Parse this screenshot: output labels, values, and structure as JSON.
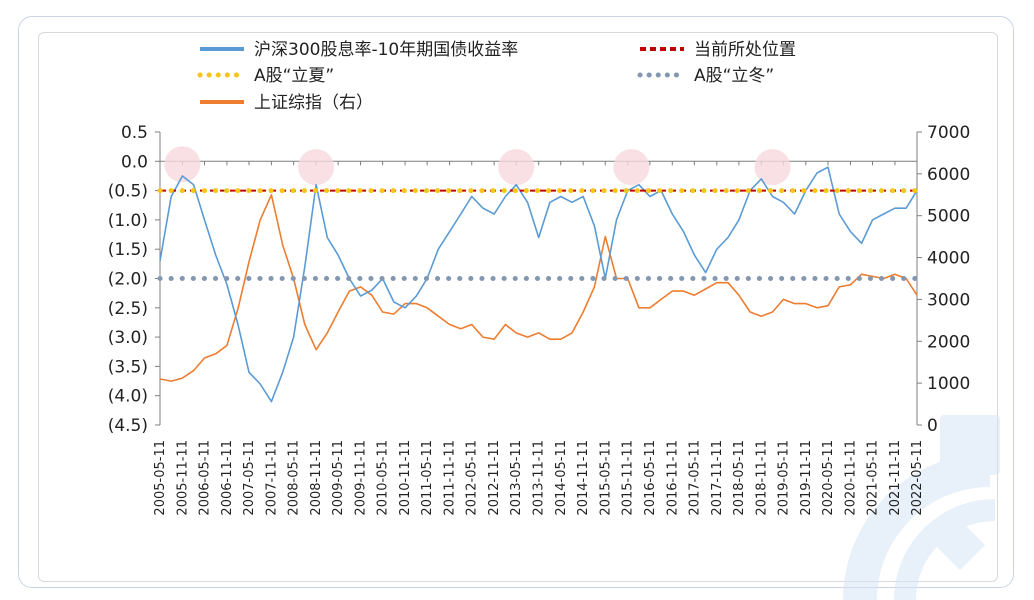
{
  "colors": {
    "blue": "#5b9bd5",
    "orange": "#ed7d31",
    "red_dashed": "#c00000",
    "yellow_dotted": "#f5c518",
    "gray_dotted": "#8497b0",
    "circle_fill": "#f6d8de",
    "watermark": "#d6e4f5"
  },
  "legend": {
    "blue_line": "沪深300股息率-10年期国债收益率",
    "red_dashed": "当前所处位置",
    "yellow_dotted": "A股“立夏”",
    "gray_dotted": "A股“立冬”",
    "orange_line": "上证综指（右）"
  },
  "chart_data": {
    "type": "line",
    "left_axis": {
      "ylim": [
        -4.5,
        0.5
      ],
      "ticks": [
        0.5,
        0.0,
        -0.5,
        -1.0,
        -1.5,
        -2.0,
        -2.5,
        -3.0,
        -3.5,
        -4.0,
        -4.5
      ],
      "tick_labels": [
        "0.5",
        "0.0",
        "(0.5)",
        "(1.0)",
        "(1.5)",
        "(2.0)",
        "(2.5)",
        "(3.0)",
        "(3.5)",
        "(4.0)",
        "(4.5)"
      ]
    },
    "right_axis": {
      "ylim": [
        0,
        7000
      ],
      "ticks": [
        7000,
        6000,
        5000,
        4000,
        3000,
        2000,
        1000,
        0
      ],
      "tick_labels": [
        "7000",
        "6000",
        "5000",
        "4000",
        "3000",
        "2000",
        "1000",
        "0"
      ]
    },
    "x_range": [
      "2005-05-11",
      "2022-05-11"
    ],
    "x_tick_labels": [
      "2005-05-11",
      "2005-11-11",
      "2006-05-11",
      "2006-11-11",
      "2007-05-11",
      "2007-11-11",
      "2008-05-11",
      "2008-11-11",
      "2009-05-11",
      "2009-11-11",
      "2010-05-11",
      "2010-11-11",
      "2011-05-11",
      "2011-11-11",
      "2012-05-11",
      "2012-11-11",
      "2013-05-11",
      "2013-11-11",
      "2014-05-11",
      "2014-11-11",
      "2015-05-11",
      "2015-11-11",
      "2016-05-11",
      "2016-11-11",
      "2017-05-11",
      "2017-11-11",
      "2018-05-11",
      "2018-11-11",
      "2019-05-11",
      "2019-11-11",
      "2020-05-11",
      "2020-11-11",
      "2021-05-11",
      "2021-11-11",
      "2022-05-11"
    ],
    "reference_lines": [
      {
        "name": "当前所处位置",
        "axis": "left",
        "value": -0.5,
        "style": "dashed"
      },
      {
        "name": "A股“立夏”",
        "axis": "left",
        "value": -0.5,
        "style": "dotted"
      },
      {
        "name": "A股“立冬”",
        "axis": "left",
        "value": -2.0,
        "style": "dotted"
      }
    ],
    "highlight_circles": [
      {
        "x": "2005-11-11",
        "y": -0.05
      },
      {
        "x": "2008-11-11",
        "y": -0.1
      },
      {
        "x": "2013-05-11",
        "y": -0.1
      },
      {
        "x": "2015-12-11",
        "y": -0.1
      },
      {
        "x": "2019-02-11",
        "y": -0.1
      }
    ],
    "series": [
      {
        "name": "沪深300股息率-10年期国债收益率",
        "axis": "left",
        "x": [
          "2005-05-11",
          "2005-08-11",
          "2005-11-11",
          "2006-02-11",
          "2006-05-11",
          "2006-08-11",
          "2006-11-11",
          "2007-02-11",
          "2007-05-11",
          "2007-08-11",
          "2007-11-11",
          "2008-02-11",
          "2008-05-11",
          "2008-08-11",
          "2008-11-11",
          "2009-02-11",
          "2009-05-11",
          "2009-08-11",
          "2009-11-11",
          "2010-02-11",
          "2010-05-11",
          "2010-08-11",
          "2010-11-11",
          "2011-02-11",
          "2011-05-11",
          "2011-08-11",
          "2011-11-11",
          "2012-02-11",
          "2012-05-11",
          "2012-08-11",
          "2012-11-11",
          "2013-02-11",
          "2013-05-11",
          "2013-08-11",
          "2013-11-11",
          "2014-02-11",
          "2014-05-11",
          "2014-08-11",
          "2014-11-11",
          "2015-02-11",
          "2015-05-11",
          "2015-08-11",
          "2015-11-11",
          "2016-02-11",
          "2016-05-11",
          "2016-08-11",
          "2016-11-11",
          "2017-02-11",
          "2017-05-11",
          "2017-08-11",
          "2017-11-11",
          "2018-02-11",
          "2018-05-11",
          "2018-08-11",
          "2018-11-11",
          "2019-02-11",
          "2019-05-11",
          "2019-08-11",
          "2019-11-11",
          "2020-02-11",
          "2020-05-11",
          "2020-08-11",
          "2020-11-11",
          "2021-02-11",
          "2021-05-11",
          "2021-08-11",
          "2021-11-11",
          "2022-02-11",
          "2022-05-11"
        ],
        "values": [
          -1.7,
          -0.6,
          -0.25,
          -0.4,
          -1.0,
          -1.6,
          -2.1,
          -2.8,
          -3.6,
          -3.8,
          -4.1,
          -3.6,
          -3.0,
          -1.8,
          -0.4,
          -1.3,
          -1.6,
          -2.0,
          -2.3,
          -2.2,
          -2.0,
          -2.4,
          -2.5,
          -2.3,
          -2.0,
          -1.5,
          -1.2,
          -0.9,
          -0.6,
          -0.8,
          -0.9,
          -0.6,
          -0.4,
          -0.7,
          -1.3,
          -0.7,
          -0.6,
          -0.7,
          -0.6,
          -1.1,
          -2.0,
          -1.0,
          -0.5,
          -0.4,
          -0.6,
          -0.5,
          -0.9,
          -1.2,
          -1.6,
          -1.9,
          -1.5,
          -1.3,
          -1.0,
          -0.5,
          -0.3,
          -0.6,
          -0.7,
          -0.9,
          -0.5,
          -0.2,
          -0.1,
          -0.9,
          -1.2,
          -1.4,
          -1.0,
          -0.9,
          -0.8,
          -0.8,
          -0.5
        ]
      },
      {
        "name": "上证综指（右）",
        "axis": "right",
        "x": [
          "2005-05-11",
          "2005-08-11",
          "2005-11-11",
          "2006-02-11",
          "2006-05-11",
          "2006-08-11",
          "2006-11-11",
          "2007-02-11",
          "2007-05-11",
          "2007-08-11",
          "2007-11-11",
          "2008-02-11",
          "2008-05-11",
          "2008-08-11",
          "2008-11-11",
          "2009-02-11",
          "2009-05-11",
          "2009-08-11",
          "2009-11-11",
          "2010-02-11",
          "2010-05-11",
          "2010-08-11",
          "2010-11-11",
          "2011-02-11",
          "2011-05-11",
          "2011-08-11",
          "2011-11-11",
          "2012-02-11",
          "2012-05-11",
          "2012-08-11",
          "2012-11-11",
          "2013-02-11",
          "2013-05-11",
          "2013-08-11",
          "2013-11-11",
          "2014-02-11",
          "2014-05-11",
          "2014-08-11",
          "2014-11-11",
          "2015-02-11",
          "2015-05-11",
          "2015-08-11",
          "2015-11-11",
          "2016-02-11",
          "2016-05-11",
          "2016-08-11",
          "2016-11-11",
          "2017-02-11",
          "2017-05-11",
          "2017-08-11",
          "2017-11-11",
          "2018-02-11",
          "2018-05-11",
          "2018-08-11",
          "2018-11-11",
          "2019-02-11",
          "2019-05-11",
          "2019-08-11",
          "2019-11-11",
          "2020-02-11",
          "2020-05-11",
          "2020-08-11",
          "2020-11-11",
          "2021-02-11",
          "2021-05-11",
          "2021-08-11",
          "2021-11-11",
          "2022-02-11",
          "2022-05-11"
        ],
        "values": [
          1100,
          1050,
          1120,
          1300,
          1600,
          1700,
          1900,
          2800,
          3900,
          4900,
          5500,
          4300,
          3500,
          2400,
          1800,
          2200,
          2700,
          3200,
          3300,
          3100,
          2700,
          2650,
          2900,
          2900,
          2800,
          2600,
          2400,
          2300,
          2400,
          2100,
          2050,
          2400,
          2200,
          2100,
          2200,
          2050,
          2050,
          2200,
          2700,
          3300,
          4500,
          3500,
          3500,
          2800,
          2800,
          3000,
          3200,
          3200,
          3100,
          3250,
          3400,
          3400,
          3100,
          2700,
          2600,
          2700,
          3000,
          2900,
          2900,
          2800,
          2850,
          3300,
          3350,
          3600,
          3550,
          3500,
          3600,
          3500,
          3100
        ]
      }
    ]
  }
}
